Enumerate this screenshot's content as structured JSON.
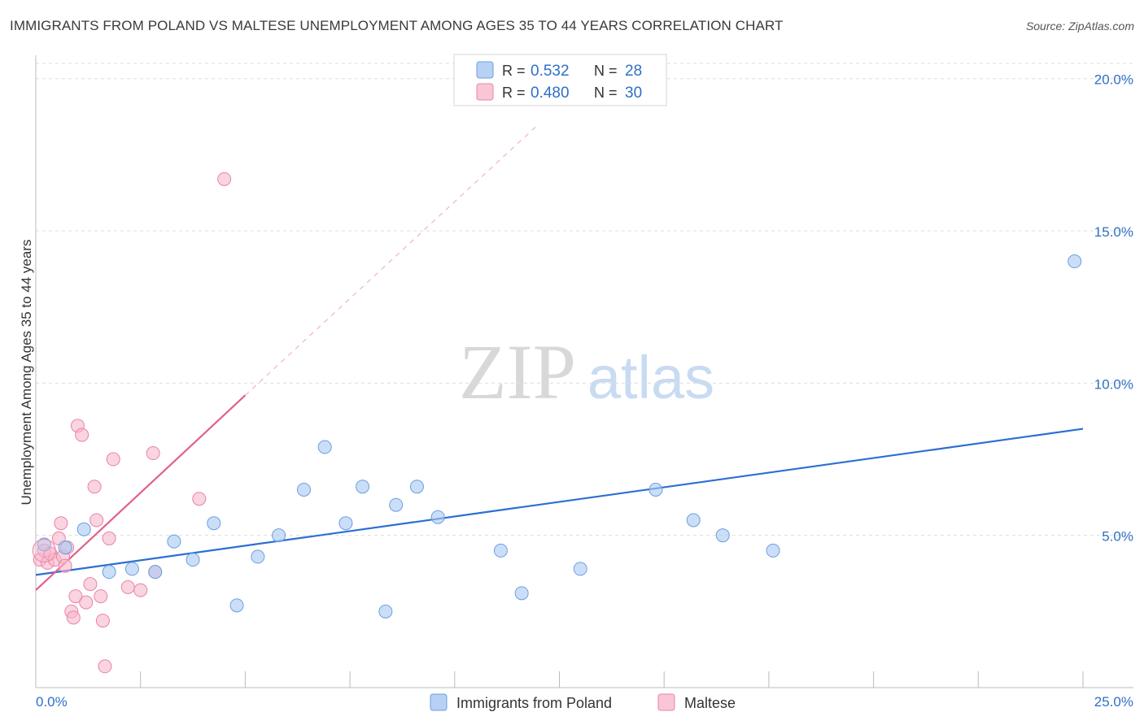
{
  "title": "IMMIGRANTS FROM POLAND VS MALTESE UNEMPLOYMENT AMONG AGES 35 TO 44 YEARS CORRELATION CHART",
  "source": "Source: ZipAtlas.com",
  "watermark": {
    "zip": "ZIP",
    "atlas": "atlas"
  },
  "colors": {
    "blue": "#a9c8f3",
    "blue_stroke": "#6a9fe0",
    "blue_line": "#2a6fd1",
    "pink": "#f7b8cb",
    "pink_stroke": "#e884a4",
    "pink_line": "#e2608a",
    "axis_label": "#2f6fc7",
    "grid": "#dddddd"
  },
  "legend_top": [
    {
      "series": "blue",
      "r_label": "R =",
      "r_value": "0.532",
      "n_label": "N =",
      "n_value": "28"
    },
    {
      "series": "pink",
      "r_label": "R =",
      "r_value": "0.480",
      "n_label": "N =",
      "n_value": "30"
    }
  ],
  "chart_data": {
    "type": "scatter",
    "title": "IMMIGRANTS FROM POLAND VS MALTESE UNEMPLOYMENT AMONG AGES 35 TO 44 YEARS CORRELATION CHART",
    "xlabel": "",
    "ylabel": "Unemployment Among Ages 35 to 44 years",
    "xlim": [
      0,
      25
    ],
    "ylim": [
      0,
      20.5
    ],
    "x_tick_labels": [
      "0.0%",
      "25.0%"
    ],
    "y_ticks": [
      5,
      10,
      15,
      20
    ],
    "y_tick_labels": [
      "5.0%",
      "10.0%",
      "15.0%",
      "20.0%"
    ],
    "legend_position": "bottom-center",
    "series": [
      {
        "name": "Immigrants from Poland",
        "color": "blue",
        "trend": {
          "x0": 0,
          "y0": 3.7,
          "x1": 25,
          "y1": 8.5
        },
        "points": [
          [
            0.2,
            4.7
          ],
          [
            0.7,
            4.6
          ],
          [
            1.15,
            5.2
          ],
          [
            1.75,
            3.8
          ],
          [
            2.3,
            3.9
          ],
          [
            2.85,
            3.8
          ],
          [
            3.3,
            4.8
          ],
          [
            3.75,
            4.2
          ],
          [
            4.25,
            5.4
          ],
          [
            4.8,
            2.7
          ],
          [
            5.3,
            4.3
          ],
          [
            5.8,
            5.0
          ],
          [
            6.4,
            6.5
          ],
          [
            6.9,
            7.9
          ],
          [
            7.4,
            5.4
          ],
          [
            7.8,
            6.6
          ],
          [
            8.35,
            2.5
          ],
          [
            8.6,
            6.0
          ],
          [
            9.1,
            6.6
          ],
          [
            9.6,
            5.6
          ],
          [
            11.1,
            4.5
          ],
          [
            11.6,
            3.1
          ],
          [
            13.0,
            3.9
          ],
          [
            14.8,
            6.5
          ],
          [
            15.7,
            5.5
          ],
          [
            16.4,
            5.0
          ],
          [
            17.6,
            4.5
          ],
          [
            24.8,
            14.0
          ]
        ]
      },
      {
        "name": "Maltese",
        "color": "pink",
        "trend": {
          "x0": 0,
          "y0": 3.2,
          "x1": 5.0,
          "y1": 9.6
        },
        "trend_extension": {
          "x0": 5.0,
          "y0": 9.6,
          "x1": 12.0,
          "y1": 18.5
        },
        "points": [
          [
            0.1,
            4.2
          ],
          [
            0.2,
            4.5
          ],
          [
            0.28,
            4.1
          ],
          [
            0.35,
            4.4
          ],
          [
            0.45,
            4.2
          ],
          [
            0.55,
            4.9
          ],
          [
            0.6,
            5.4
          ],
          [
            0.65,
            4.3
          ],
          [
            0.7,
            4.0
          ],
          [
            0.75,
            4.6
          ],
          [
            0.85,
            2.5
          ],
          [
            0.9,
            2.3
          ],
          [
            0.95,
            3.0
          ],
          [
            1.0,
            8.6
          ],
          [
            1.1,
            8.3
          ],
          [
            1.2,
            2.8
          ],
          [
            1.3,
            3.4
          ],
          [
            1.4,
            6.6
          ],
          [
            1.45,
            5.5
          ],
          [
            1.55,
            3.0
          ],
          [
            1.6,
            2.2
          ],
          [
            1.65,
            0.7
          ],
          [
            1.75,
            4.9
          ],
          [
            1.85,
            7.5
          ],
          [
            2.2,
            3.3
          ],
          [
            2.5,
            3.2
          ],
          [
            2.8,
            7.7
          ],
          [
            2.85,
            3.8
          ],
          [
            3.9,
            6.2
          ],
          [
            4.5,
            16.7
          ]
        ]
      }
    ]
  }
}
